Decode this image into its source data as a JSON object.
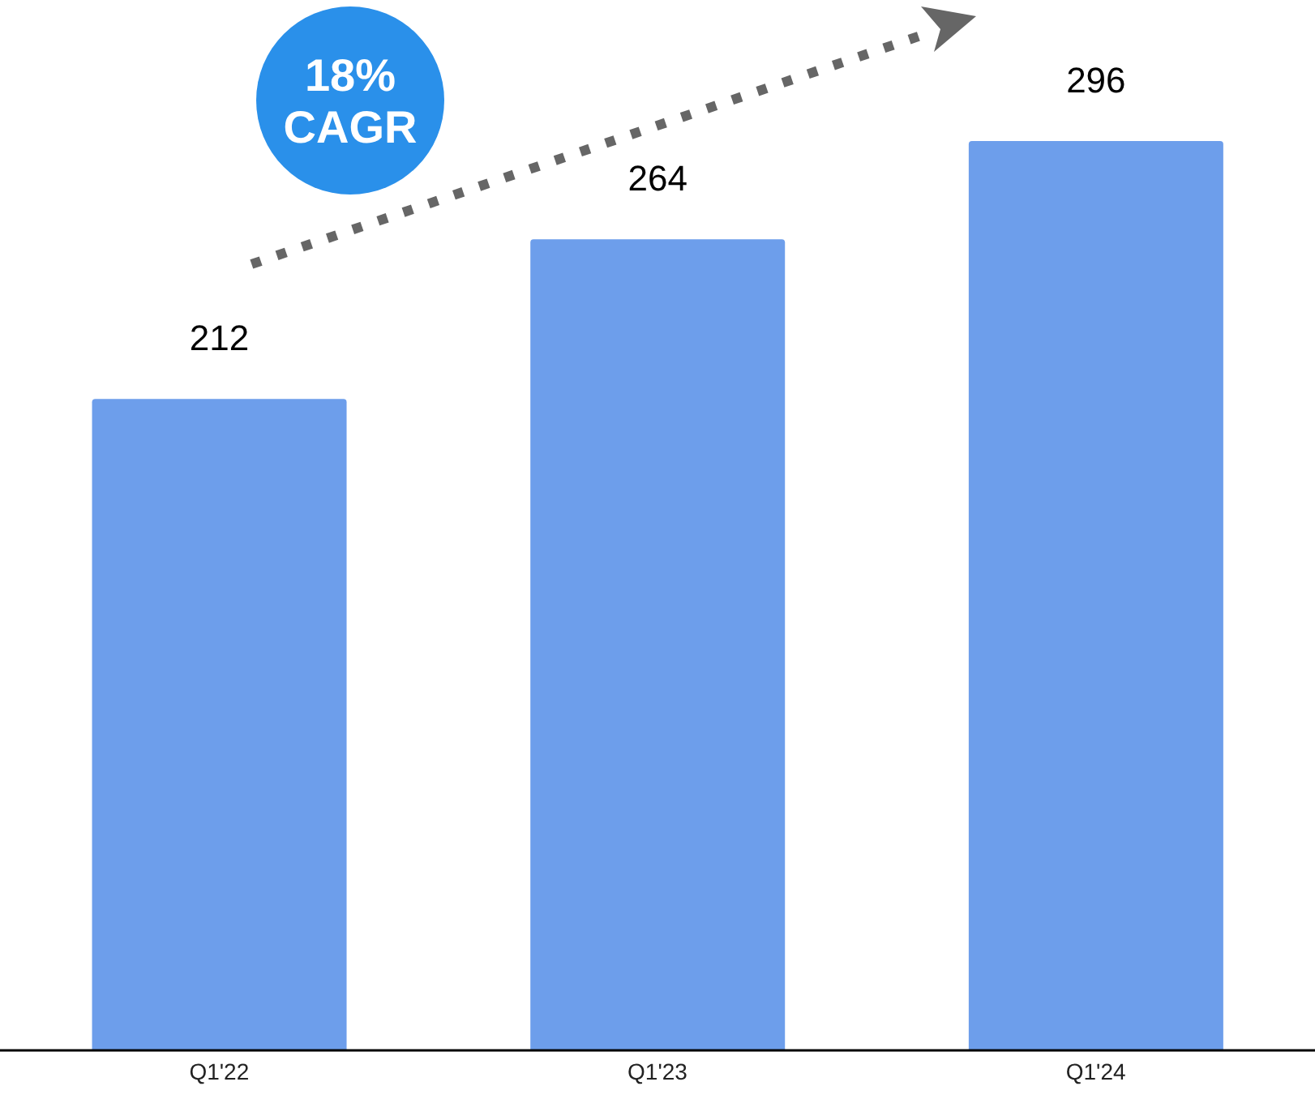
{
  "chart_data": {
    "type": "bar",
    "categories": [
      "Q1'22",
      "Q1'23",
      "Q1'24"
    ],
    "values": [
      212,
      264,
      296
    ],
    "color": "#6d9eeb",
    "data_labels": true,
    "annotations": [
      "18% CAGR"
    ]
  }
}
